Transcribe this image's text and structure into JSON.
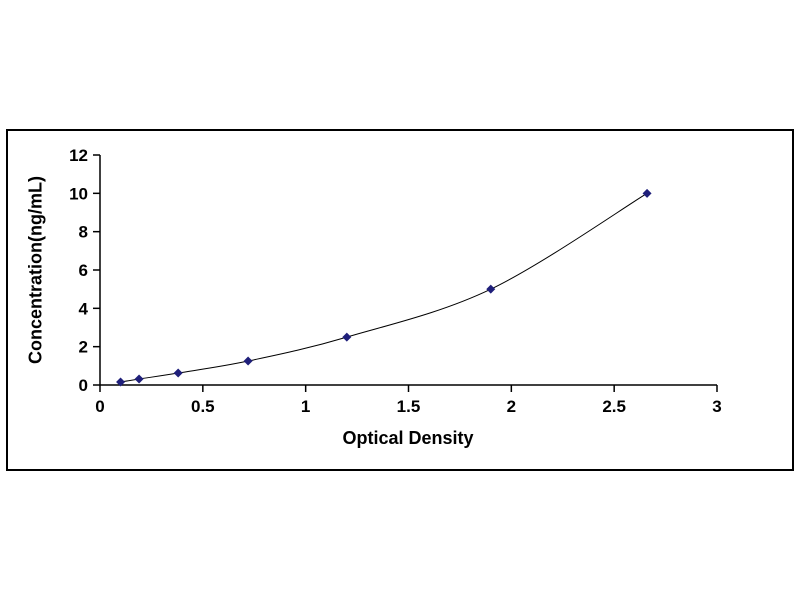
{
  "chart_data": {
    "type": "line",
    "title": "",
    "xlabel": "Optical Density",
    "ylabel": "Concentration(ng/mL)",
    "x": [
      0.1,
      0.19,
      0.38,
      0.72,
      1.2,
      1.9,
      2.66
    ],
    "y": [
      0.156,
      0.312,
      0.625,
      1.25,
      2.5,
      5,
      10
    ],
    "xlim": [
      0,
      3
    ],
    "ylim": [
      0,
      12
    ],
    "x_ticks": [
      0,
      0.5,
      1,
      1.5,
      2,
      2.5,
      3
    ],
    "x_tick_labels": [
      "0",
      "0.5",
      "1",
      "1.5",
      "2",
      "2.5",
      "3"
    ],
    "y_ticks": [
      0,
      2,
      4,
      6,
      8,
      10,
      12
    ],
    "y_tick_labels": [
      "0",
      "2",
      "4",
      "6",
      "8",
      "10",
      "12"
    ],
    "marker_shape": "diamond",
    "marker_color": "#1F1F7A",
    "line_color": "#000000",
    "axis_color": "#000000",
    "grid": false,
    "legend": "none"
  }
}
